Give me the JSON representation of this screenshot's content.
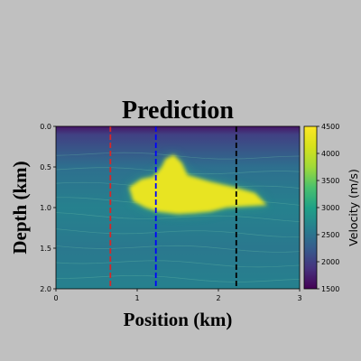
{
  "chart_data": {
    "type": "heatmap",
    "title": "Prediction",
    "xlabel": "Position (km)",
    "ylabel": "Depth (km)",
    "xlim": [
      0,
      3
    ],
    "ylim": [
      2.0,
      0.0
    ],
    "xticks": [
      "0",
      "1",
      "2",
      "3"
    ],
    "yticks": [
      "0.0",
      "0.5",
      "1.0",
      "1.5",
      "2.0"
    ],
    "colorbar": {
      "label": "Velocity (m/s)",
      "range": [
        1500,
        4500
      ],
      "ticks": [
        "1500",
        "2000",
        "2500",
        "3000",
        "3500",
        "4000",
        "4500"
      ],
      "colormap": "viridis"
    },
    "background_velocity": {
      "depth": [
        0.0,
        0.1,
        0.5,
        1.0,
        1.5,
        2.0
      ],
      "velocity": [
        1650,
        2000,
        2450,
        2650,
        2550,
        2650
      ]
    },
    "salt_body": {
      "velocity": 4300,
      "outline": [
        [
          0.9,
          0.75
        ],
        [
          1.05,
          0.65
        ],
        [
          1.2,
          0.62
        ],
        [
          1.3,
          0.5
        ],
        [
          1.35,
          0.4
        ],
        [
          1.45,
          0.35
        ],
        [
          1.55,
          0.45
        ],
        [
          1.62,
          0.6
        ],
        [
          1.9,
          0.68
        ],
        [
          2.2,
          0.75
        ],
        [
          2.45,
          0.82
        ],
        [
          2.6,
          0.97
        ],
        [
          2.4,
          0.98
        ],
        [
          2.1,
          1.0
        ],
        [
          1.9,
          1.05
        ],
        [
          1.7,
          1.07
        ],
        [
          1.5,
          1.08
        ],
        [
          1.25,
          1.05
        ],
        [
          1.1,
          1.0
        ],
        [
          0.95,
          0.92
        ]
      ]
    },
    "reference_lines": [
      {
        "x": 0.67,
        "color": "#d62728"
      },
      {
        "x": 1.23,
        "color": "#0000ff"
      },
      {
        "x": 2.22,
        "color": "#000000"
      }
    ],
    "grid": false
  }
}
